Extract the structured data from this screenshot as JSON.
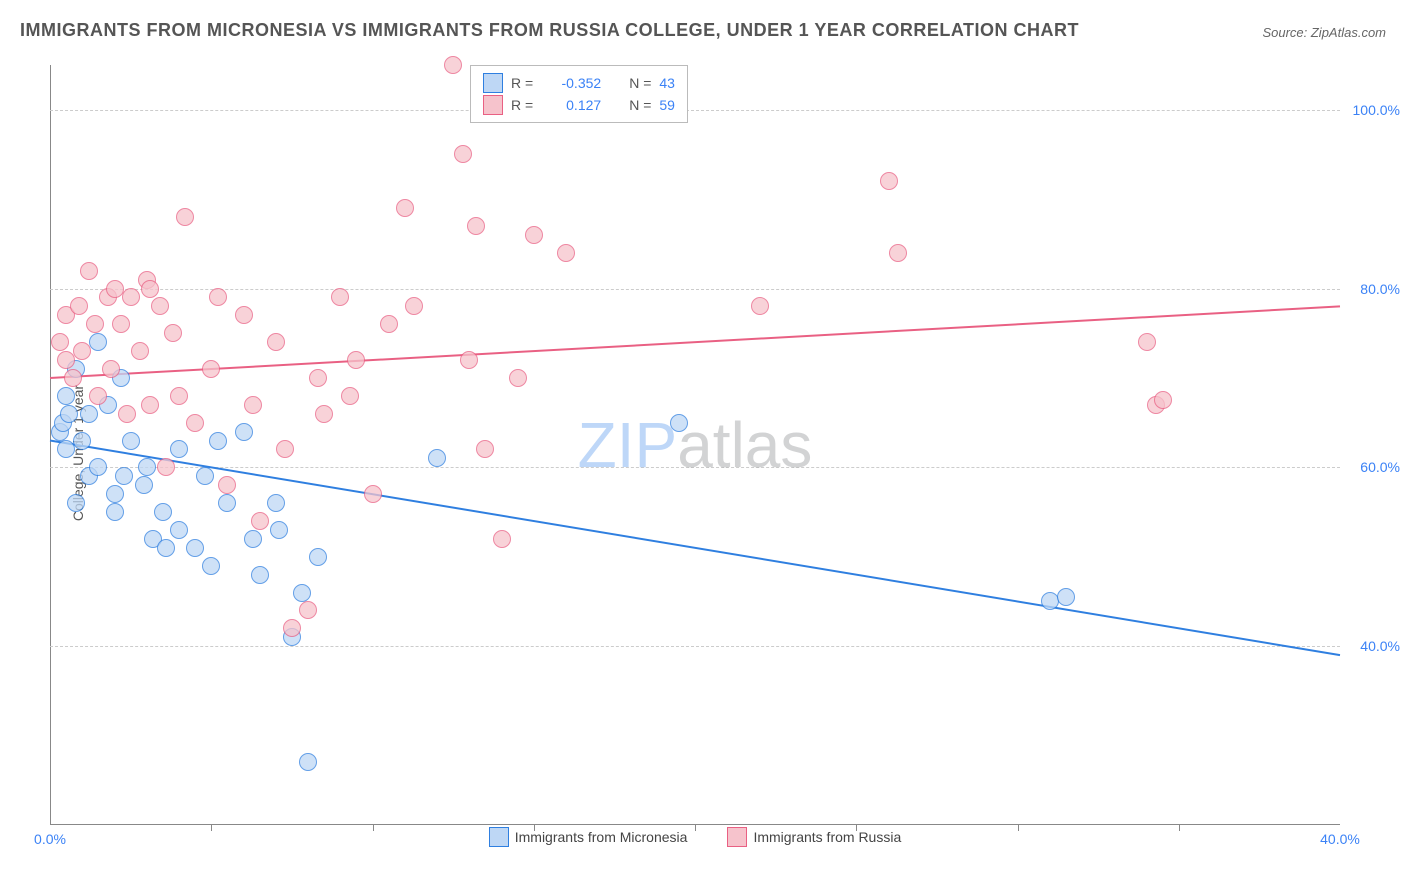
{
  "title": "IMMIGRANTS FROM MICRONESIA VS IMMIGRANTS FROM RUSSIA COLLEGE, UNDER 1 YEAR CORRELATION CHART",
  "source": "Source: ZipAtlas.com",
  "watermark_a": "ZIP",
  "watermark_b": "atlas",
  "chart": {
    "type": "scatter",
    "ylabel": "College, Under 1 year",
    "xlim": [
      0,
      40
    ],
    "ylim": [
      20,
      105
    ],
    "xticks": [
      0,
      40
    ],
    "xtick_labels": [
      "0.0%",
      "40.0%"
    ],
    "xtick_marks": [
      5,
      10,
      15,
      20,
      25,
      30,
      35
    ],
    "yticks": [
      40,
      60,
      80,
      100
    ],
    "ytick_labels": [
      "40.0%",
      "60.0%",
      "80.0%",
      "100.0%"
    ],
    "grid_color": "#cccccc",
    "background_color": "#ffffff",
    "marker_size": 16,
    "series": [
      {
        "name": "Immigrants from Micronesia",
        "fill": "#bed7f5",
        "stroke": "#2f7fe0",
        "r": -0.352,
        "n": 43,
        "trend_y0": 63,
        "trend_y1": 39,
        "points": [
          [
            0.3,
            64
          ],
          [
            0.4,
            65
          ],
          [
            0.5,
            62
          ],
          [
            0.5,
            68
          ],
          [
            0.6,
            66
          ],
          [
            0.8,
            71
          ],
          [
            0.8,
            56
          ],
          [
            1.0,
            63
          ],
          [
            1.2,
            59
          ],
          [
            1.2,
            66
          ],
          [
            1.5,
            60
          ],
          [
            1.5,
            74
          ],
          [
            1.8,
            67
          ],
          [
            2.0,
            55
          ],
          [
            2.0,
            57
          ],
          [
            2.2,
            70
          ],
          [
            2.3,
            59
          ],
          [
            2.5,
            63
          ],
          [
            2.9,
            58
          ],
          [
            3.0,
            60
          ],
          [
            3.2,
            52
          ],
          [
            3.5,
            55
          ],
          [
            3.6,
            51
          ],
          [
            4.0,
            53
          ],
          [
            4.0,
            62
          ],
          [
            4.5,
            51
          ],
          [
            4.8,
            59
          ],
          [
            5.0,
            49
          ],
          [
            5.2,
            63
          ],
          [
            5.5,
            56
          ],
          [
            6.0,
            64
          ],
          [
            6.3,
            52
          ],
          [
            6.5,
            48
          ],
          [
            7.0,
            56
          ],
          [
            7.1,
            53
          ],
          [
            7.5,
            41
          ],
          [
            7.8,
            46
          ],
          [
            8.0,
            27
          ],
          [
            8.3,
            50
          ],
          [
            12.0,
            61
          ],
          [
            19.5,
            65
          ],
          [
            31.0,
            45
          ],
          [
            31.5,
            45.5
          ]
        ]
      },
      {
        "name": "Immigrants from Russia",
        "fill": "#f6c3cc",
        "stroke": "#e96083",
        "r": 0.127,
        "n": 59,
        "trend_y0": 70,
        "trend_y1": 78,
        "points": [
          [
            0.3,
            74
          ],
          [
            0.5,
            72
          ],
          [
            0.5,
            77
          ],
          [
            0.7,
            70
          ],
          [
            0.9,
            78
          ],
          [
            1.0,
            73
          ],
          [
            1.2,
            82
          ],
          [
            1.4,
            76
          ],
          [
            1.5,
            68
          ],
          [
            1.8,
            79
          ],
          [
            1.9,
            71
          ],
          [
            2.0,
            80
          ],
          [
            2.2,
            76
          ],
          [
            2.4,
            66
          ],
          [
            2.5,
            79
          ],
          [
            2.8,
            73
          ],
          [
            3.0,
            81
          ],
          [
            3.1,
            67
          ],
          [
            3.1,
            80
          ],
          [
            3.4,
            78
          ],
          [
            3.6,
            60
          ],
          [
            3.8,
            75
          ],
          [
            4.0,
            68
          ],
          [
            4.2,
            88
          ],
          [
            4.5,
            65
          ],
          [
            5.0,
            71
          ],
          [
            5.2,
            79
          ],
          [
            5.5,
            58
          ],
          [
            6.0,
            77
          ],
          [
            6.3,
            67
          ],
          [
            6.5,
            54
          ],
          [
            7.0,
            74
          ],
          [
            7.3,
            62
          ],
          [
            7.5,
            42
          ],
          [
            8.0,
            44
          ],
          [
            8.3,
            70
          ],
          [
            8.5,
            66
          ],
          [
            9.0,
            79
          ],
          [
            9.3,
            68
          ],
          [
            9.5,
            72
          ],
          [
            10.0,
            57
          ],
          [
            10.5,
            76
          ],
          [
            11.0,
            89
          ],
          [
            11.3,
            78
          ],
          [
            12.5,
            105
          ],
          [
            12.8,
            95
          ],
          [
            13.2,
            87
          ],
          [
            13.0,
            72
          ],
          [
            13.5,
            62
          ],
          [
            14.0,
            52
          ],
          [
            14.5,
            70
          ],
          [
            15.0,
            86
          ],
          [
            16.0,
            84
          ],
          [
            22.0,
            78
          ],
          [
            26.0,
            92
          ],
          [
            26.3,
            84
          ],
          [
            34.0,
            74
          ],
          [
            34.3,
            67
          ],
          [
            34.5,
            67.5
          ]
        ]
      }
    ]
  }
}
